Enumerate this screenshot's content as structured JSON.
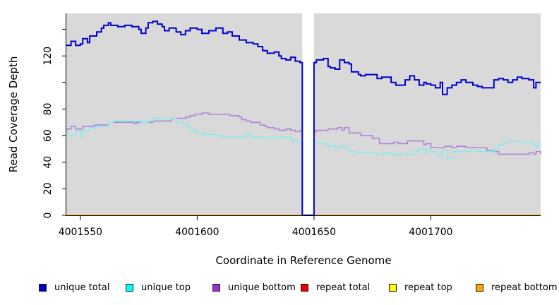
{
  "figure": {
    "xlabel": "Coordinate in Reference Genome",
    "ylabel": "Read Coverage Depth"
  },
  "legend": {
    "items": [
      {
        "label": "unique total",
        "color": "#0000cc"
      },
      {
        "label": "unique top",
        "color": "#00ffff"
      },
      {
        "label": "unique bottom",
        "color": "#9932cc"
      },
      {
        "label": "repeat total",
        "color": "#e60000"
      },
      {
        "label": "repeat top",
        "color": "#ffff00"
      },
      {
        "label": "repeat bottom",
        "color": "#ffa500"
      }
    ]
  },
  "chart_data": {
    "type": "line",
    "step": true,
    "title": "",
    "xlabel": "Coordinate in Reference Genome",
    "ylabel": "Read Coverage Depth",
    "xlim": [
      4001544,
      4001747
    ],
    "ylim": [
      0,
      152
    ],
    "grid": false,
    "plot_background": "#d9d9d9",
    "axis_color": "#000000",
    "gap": {
      "from": 4001645,
      "to": 4001650
    },
    "x_ticks": [
      {
        "value": 4001550,
        "label": "4001550"
      },
      {
        "value": 4001600,
        "label": "4001600"
      },
      {
        "value": 4001650,
        "label": "4001650"
      },
      {
        "value": 4001700,
        "label": "4001700"
      }
    ],
    "y_ticks": [
      {
        "value": 0,
        "label": "0"
      },
      {
        "value": 20,
        "label": "20"
      },
      {
        "value": 40,
        "label": "40"
      },
      {
        "value": 60,
        "label": "60"
      },
      {
        "value": 80,
        "label": "80"
      },
      {
        "value": 100,
        "label": ""
      },
      {
        "value": 120,
        "label": "120"
      },
      {
        "value": 140,
        "label": ""
      }
    ],
    "series": [
      {
        "name": "repeat total",
        "color": "#e60000",
        "width": 1.8,
        "points": [
          [
            4001544,
            0
          ],
          [
            4001747,
            0
          ]
        ]
      },
      {
        "name": "repeat top",
        "color": "#ffff00",
        "width": 1.8,
        "points": [
          [
            4001544,
            0
          ],
          [
            4001747,
            0
          ]
        ]
      },
      {
        "name": "repeat bottom",
        "color": "#ffa500",
        "width": 2,
        "points": [
          [
            4001544,
            0
          ],
          [
            4001747,
            0
          ]
        ]
      },
      {
        "name": "unique bottom",
        "color": "#af85dc",
        "width": 1.6,
        "points": [
          [
            4001544,
            65
          ],
          [
            4001546,
            67
          ],
          [
            4001548,
            65
          ],
          [
            4001551,
            67
          ],
          [
            4001556,
            68
          ],
          [
            4001562,
            70
          ],
          [
            4001572,
            70
          ],
          [
            4001573,
            69
          ],
          [
            4001574,
            70
          ],
          [
            4001581,
            71
          ],
          [
            4001589,
            73
          ],
          [
            4001595,
            74
          ],
          [
            4001597,
            75
          ],
          [
            4001599,
            76
          ],
          [
            4001602,
            77
          ],
          [
            4001605,
            76
          ],
          [
            4001611,
            76
          ],
          [
            4001614,
            75
          ],
          [
            4001618,
            74
          ],
          [
            4001619,
            72
          ],
          [
            4001621,
            71
          ],
          [
            4001623,
            70
          ],
          [
            4001627,
            68
          ],
          [
            4001629,
            67
          ],
          [
            4001630,
            66
          ],
          [
            4001633,
            65
          ],
          [
            4001635,
            64
          ],
          [
            4001638,
            65
          ],
          [
            4001640,
            64
          ],
          [
            4001642,
            63
          ],
          [
            4001644,
            64
          ],
          [
            4001645,
            0
          ],
          [
            4001650,
            63
          ],
          [
            4001651,
            64
          ],
          [
            4001656,
            65
          ],
          [
            4001660,
            66
          ],
          [
            4001662,
            64
          ],
          [
            4001663,
            66
          ],
          [
            4001665,
            62
          ],
          [
            4001670,
            60
          ],
          [
            4001675,
            58
          ],
          [
            4001678,
            54
          ],
          [
            4001684,
            55
          ],
          [
            4001686,
            54
          ],
          [
            4001690,
            56
          ],
          [
            4001697,
            53
          ],
          [
            4001698,
            54
          ],
          [
            4001700,
            51
          ],
          [
            4001706,
            52
          ],
          [
            4001709,
            51
          ],
          [
            4001711,
            52
          ],
          [
            4001715,
            51
          ],
          [
            4001724,
            49
          ],
          [
            4001727,
            48
          ],
          [
            4001729,
            46
          ],
          [
            4001737,
            46
          ],
          [
            4001742,
            47
          ],
          [
            4001744,
            46
          ],
          [
            4001745,
            48
          ],
          [
            4001747,
            46
          ]
        ]
      },
      {
        "name": "unique top",
        "color": "#8aeaea",
        "width": 1.6,
        "points": [
          [
            4001544,
            63
          ],
          [
            4001545,
            60
          ],
          [
            4001548,
            64
          ],
          [
            4001550,
            59
          ],
          [
            4001551,
            63
          ],
          [
            4001552,
            64
          ],
          [
            4001554,
            66
          ],
          [
            4001557,
            67
          ],
          [
            4001562,
            70
          ],
          [
            4001564,
            71
          ],
          [
            4001572,
            71
          ],
          [
            4001576,
            70
          ],
          [
            4001579,
            71
          ],
          [
            4001581,
            73
          ],
          [
            4001588,
            73
          ],
          [
            4001591,
            70
          ],
          [
            4001594,
            68
          ],
          [
            4001596,
            66
          ],
          [
            4001597,
            64
          ],
          [
            4001600,
            62
          ],
          [
            4001603,
            61
          ],
          [
            4001608,
            60
          ],
          [
            4001611,
            59
          ],
          [
            4001617,
            59
          ],
          [
            4001621,
            62
          ],
          [
            4001623,
            59
          ],
          [
            4001630,
            58
          ],
          [
            4001633,
            59
          ],
          [
            4001640,
            57
          ],
          [
            4001641,
            56
          ],
          [
            4001643,
            55
          ],
          [
            4001645,
            0
          ],
          [
            4001650,
            54
          ],
          [
            4001656,
            52
          ],
          [
            4001659,
            50
          ],
          [
            4001660,
            52
          ],
          [
            4001663,
            51
          ],
          [
            4001665,
            48
          ],
          [
            4001668,
            47
          ],
          [
            4001677,
            46
          ],
          [
            4001680,
            47
          ],
          [
            4001684,
            45
          ],
          [
            4001687,
            46
          ],
          [
            4001693,
            48
          ],
          [
            4001695,
            50
          ],
          [
            4001697,
            47
          ],
          [
            4001698,
            50
          ],
          [
            4001700,
            48
          ],
          [
            4001702,
            47
          ],
          [
            4001703,
            45
          ],
          [
            4001705,
            49
          ],
          [
            4001707,
            43
          ],
          [
            4001710,
            48
          ],
          [
            4001717,
            49
          ],
          [
            4001720,
            48
          ],
          [
            4001727,
            50
          ],
          [
            4001729,
            53
          ],
          [
            4001731,
            54
          ],
          [
            4001732,
            56
          ],
          [
            4001739,
            55
          ],
          [
            4001744,
            53
          ],
          [
            4001745,
            52
          ],
          [
            4001746,
            55
          ],
          [
            4001747,
            55
          ]
        ]
      },
      {
        "name": "unique total",
        "color": "#0000cd",
        "width": 2,
        "points": [
          [
            4001544,
            128
          ],
          [
            4001546,
            131
          ],
          [
            4001548,
            128
          ],
          [
            4001550,
            129
          ],
          [
            4001551,
            133
          ],
          [
            4001553,
            130
          ],
          [
            4001554,
            135
          ],
          [
            4001557,
            138
          ],
          [
            4001559,
            141
          ],
          [
            4001560,
            143
          ],
          [
            4001562,
            145
          ],
          [
            4001563,
            143
          ],
          [
            4001566,
            142
          ],
          [
            4001569,
            143
          ],
          [
            4001572,
            142
          ],
          [
            4001575,
            140
          ],
          [
            4001576,
            137
          ],
          [
            4001578,
            141
          ],
          [
            4001579,
            145
          ],
          [
            4001581,
            146
          ],
          [
            4001583,
            144
          ],
          [
            4001585,
            142
          ],
          [
            4001586,
            139
          ],
          [
            4001588,
            141
          ],
          [
            4001591,
            138
          ],
          [
            4001593,
            136
          ],
          [
            4001595,
            139
          ],
          [
            4001597,
            141
          ],
          [
            4001600,
            140
          ],
          [
            4001602,
            137
          ],
          [
            4001605,
            139
          ],
          [
            4001608,
            141
          ],
          [
            4001611,
            137
          ],
          [
            4001613,
            138
          ],
          [
            4001615,
            135
          ],
          [
            4001618,
            132
          ],
          [
            4001621,
            130
          ],
          [
            4001624,
            129
          ],
          [
            4001626,
            127
          ],
          [
            4001628,
            124
          ],
          [
            4001630,
            122
          ],
          [
            4001633,
            123
          ],
          [
            4001635,
            120
          ],
          [
            4001636,
            118
          ],
          [
            4001638,
            117
          ],
          [
            4001640,
            119
          ],
          [
            4001642,
            116
          ],
          [
            4001644,
            115
          ],
          [
            4001645,
            0
          ],
          [
            4001650,
            115
          ],
          [
            4001651,
            117
          ],
          [
            4001654,
            118
          ],
          [
            4001656,
            112
          ],
          [
            4001657,
            111
          ],
          [
            4001659,
            110
          ],
          [
            4001661,
            117
          ],
          [
            4001663,
            115
          ],
          [
            4001665,
            114
          ],
          [
            4001666,
            108
          ],
          [
            4001669,
            106
          ],
          [
            4001670,
            105
          ],
          [
            4001672,
            106
          ],
          [
            4001677,
            103
          ],
          [
            4001679,
            104
          ],
          [
            4001683,
            100
          ],
          [
            4001685,
            98
          ],
          [
            4001688,
            98
          ],
          [
            4001689,
            102
          ],
          [
            4001691,
            105
          ],
          [
            4001693,
            102
          ],
          [
            4001695,
            98
          ],
          [
            4001697,
            100
          ],
          [
            4001698,
            99
          ],
          [
            4001700,
            98
          ],
          [
            4001702,
            96
          ],
          [
            4001704,
            100
          ],
          [
            4001705,
            91
          ],
          [
            4001707,
            96
          ],
          [
            4001709,
            98
          ],
          [
            4001711,
            100
          ],
          [
            4001713,
            102
          ],
          [
            4001715,
            100
          ],
          [
            4001718,
            98
          ],
          [
            4001720,
            97
          ],
          [
            4001722,
            96
          ],
          [
            4001727,
            102
          ],
          [
            4001729,
            103
          ],
          [
            4001731,
            102
          ],
          [
            4001733,
            100
          ],
          [
            4001735,
            102
          ],
          [
            4001737,
            104
          ],
          [
            4001739,
            103
          ],
          [
            4001742,
            102
          ],
          [
            4001744,
            96
          ],
          [
            4001745,
            100
          ],
          [
            4001747,
            100
          ]
        ]
      }
    ]
  }
}
